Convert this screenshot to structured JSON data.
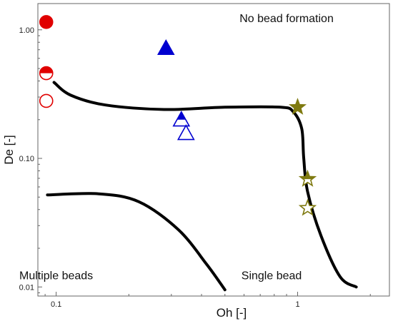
{
  "chart_data": {
    "type": "scatter",
    "x_scale": "log",
    "y_scale": "log",
    "xlim": [
      0.084,
      2.4
    ],
    "ylim": [
      0.0085,
      1.6
    ],
    "xlabel": "Oh [-]",
    "ylabel": "De [-]",
    "x_ticks": [
      {
        "value": 0.1,
        "label": "0.1"
      },
      {
        "value": 1,
        "label": "1"
      }
    ],
    "y_ticks": [
      {
        "value": 0.01,
        "label": "0.01"
      },
      {
        "value": 0.1,
        "label": "0.10"
      },
      {
        "value": 1,
        "label": "1.00"
      }
    ],
    "grid": false,
    "regions": [
      {
        "label": "No bead formation",
        "x": 0.9,
        "y": 1.15
      },
      {
        "label": "Multiple beads",
        "x": 0.1,
        "y": 0.0115
      },
      {
        "label": "Single bead",
        "x": 0.78,
        "y": 0.0115
      }
    ],
    "boundaries": [
      [
        [
          0.098,
          0.39
        ],
        [
          0.115,
          0.31
        ],
        [
          0.16,
          0.26
        ],
        [
          0.28,
          0.24
        ],
        [
          0.5,
          0.25
        ],
        [
          0.85,
          0.25
        ],
        [
          0.96,
          0.23
        ],
        [
          1.04,
          0.17
        ],
        [
          1.06,
          0.1
        ],
        [
          1.1,
          0.055
        ],
        [
          1.25,
          0.025
        ],
        [
          1.5,
          0.012
        ],
        [
          1.75,
          0.01
        ]
      ],
      [
        [
          0.092,
          0.052
        ],
        [
          0.15,
          0.053
        ],
        [
          0.22,
          0.046
        ],
        [
          0.32,
          0.028
        ],
        [
          0.42,
          0.015
        ],
        [
          0.5,
          0.0095
        ]
      ]
    ],
    "series": [
      {
        "marker": "circle",
        "color": "#e00000",
        "points": [
          {
            "x": 0.091,
            "y": 1.15,
            "fill": "full"
          },
          {
            "x": 0.091,
            "y": 0.46,
            "fill": "half"
          },
          {
            "x": 0.091,
            "y": 0.28,
            "fill": "open"
          }
        ]
      },
      {
        "marker": "triangle",
        "color": "#0000d0",
        "points": [
          {
            "x": 0.285,
            "y": 0.72,
            "fill": "full"
          },
          {
            "x": 0.33,
            "y": 0.2,
            "fill": "half"
          },
          {
            "x": 0.345,
            "y": 0.157,
            "fill": "open"
          }
        ]
      },
      {
        "marker": "star",
        "color": "#7f7a10",
        "points": [
          {
            "x": 1.0,
            "y": 0.25,
            "fill": "full"
          },
          {
            "x": 1.1,
            "y": 0.069,
            "fill": "half"
          },
          {
            "x": 1.1,
            "y": 0.041,
            "fill": "open"
          }
        ]
      }
    ]
  }
}
